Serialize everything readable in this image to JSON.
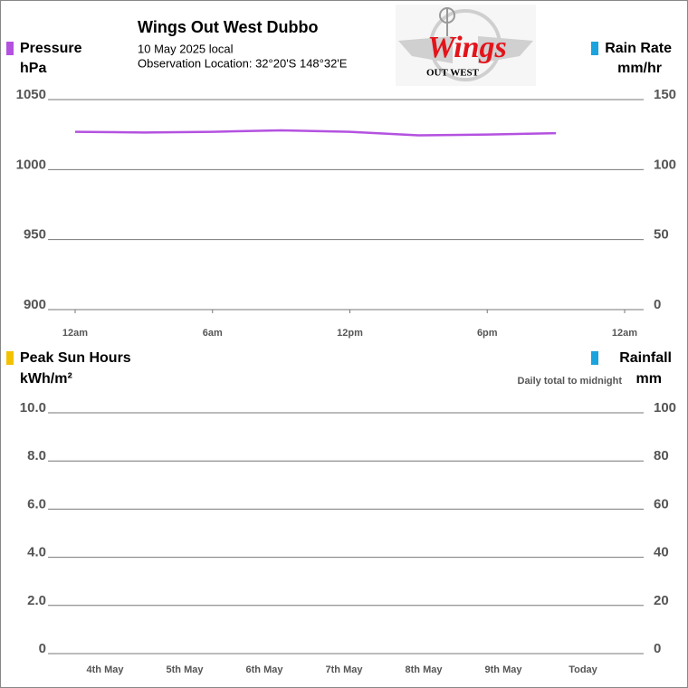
{
  "header": {
    "title": "Wings Out West Dubbo",
    "date": "10 May 2025 local",
    "location": "Observation Location: 32°20'S 148°32'E"
  },
  "logo": {
    "text": "Wings",
    "subtext": "OUT WEST"
  },
  "chart_data": [
    {
      "type": "line",
      "xlim": [
        0,
        24
      ],
      "xticks": [
        {
          "value": 0,
          "label": "12am"
        },
        {
          "value": 6,
          "label": "6am"
        },
        {
          "value": 12,
          "label": "12pm"
        },
        {
          "value": 18,
          "label": "6pm"
        },
        {
          "value": 24,
          "label": "12am"
        }
      ],
      "x": [
        0,
        3,
        6,
        9,
        12,
        15,
        18,
        21
      ],
      "y_unit": "hPa",
      "y2_unit": "mm/hr",
      "ylim": [
        900,
        1050
      ],
      "yticks": [
        900,
        950,
        1000,
        1050
      ],
      "y2lim": [
        0,
        150
      ],
      "y2ticks": [
        0,
        50,
        100,
        150
      ],
      "grid": true,
      "series": [
        {
          "name": "Pressure",
          "color": "#b452e0",
          "values": [
            1027,
            1026.5,
            1027,
            1028,
            1027,
            1024.5,
            1025,
            1026
          ]
        },
        {
          "name": "Rain Rate",
          "color": "#1aa3dc",
          "axis": "y2",
          "values": [
            null,
            null,
            null,
            null,
            null,
            null,
            null,
            null
          ]
        }
      ]
    },
    {
      "type": "bar",
      "subtitle": "Daily total to midnight",
      "categories": [
        "4th May",
        "5th May",
        "6th May",
        "7th May",
        "8th May",
        "9th May",
        "Today"
      ],
      "y_unit": "kWh/m²",
      "y2_unit": "mm",
      "ylim": [
        0,
        10
      ],
      "yticks": [
        0,
        {
          "value": 2,
          "label": "2.0"
        },
        {
          "value": 4,
          "label": "4.0"
        },
        {
          "value": 6,
          "label": "6.0"
        },
        {
          "value": 8,
          "label": "8.0"
        },
        {
          "value": 10,
          "label": "10.0"
        }
      ],
      "y2lim": [
        0,
        100
      ],
      "y2ticks": [
        0,
        20,
        40,
        60,
        80,
        100
      ],
      "grid": true,
      "series": [
        {
          "name": "Peak Sun Hours",
          "color": "#f2c200",
          "values": [
            null,
            null,
            null,
            null,
            null,
            null,
            null
          ]
        },
        {
          "name": "Rainfall",
          "color": "#1aa3dc",
          "axis": "y2",
          "values": [
            null,
            null,
            null,
            null,
            null,
            null,
            null
          ]
        }
      ]
    }
  ]
}
